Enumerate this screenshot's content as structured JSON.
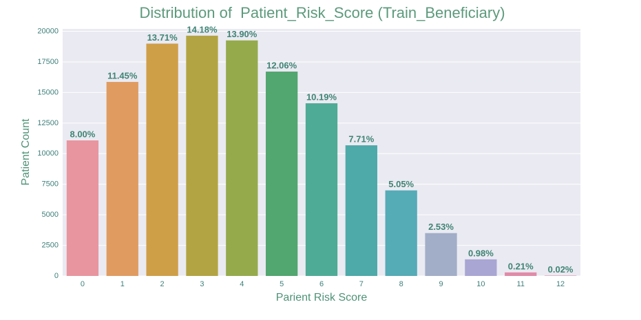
{
  "chart_data": {
    "type": "bar",
    "title": "Distribution of  Patient_Risk_Score (Train_Beneficiary)",
    "x_label": "Parient Risk Score",
    "y_label": "Patient Count",
    "categories": [
      "0",
      "1",
      "2",
      "3",
      "4",
      "5",
      "6",
      "7",
      "8",
      "9",
      "10",
      "11",
      "12"
    ],
    "values": [
      11084,
      15865,
      18996,
      19647,
      19259,
      16710,
      14119,
      10683,
      6997,
      3505,
      1358,
      291,
      28
    ],
    "annotations": [
      "8.00%",
      "11.45%",
      "13.71%",
      "14.18%",
      "13.90%",
      "12.06%",
      "10.19%",
      "7.71%",
      "5.05%",
      "2.53%",
      "0.98%",
      "0.21%",
      "0.02%"
    ],
    "colors": [
      "#e8959f",
      "#e09b61",
      "#cf9f48",
      "#b3a443",
      "#95aa4b",
      "#52a670",
      "#4eab96",
      "#4ea9a9",
      "#55abb6",
      "#a2aec8",
      "#a9a6d3",
      "#df8ba8",
      "#e6839c"
    ],
    "ylim": [
      0,
      20200
    ],
    "yticks": [
      0,
      2500,
      5000,
      7500,
      10000,
      12500,
      15000,
      17500,
      20000
    ],
    "grid": true
  }
}
